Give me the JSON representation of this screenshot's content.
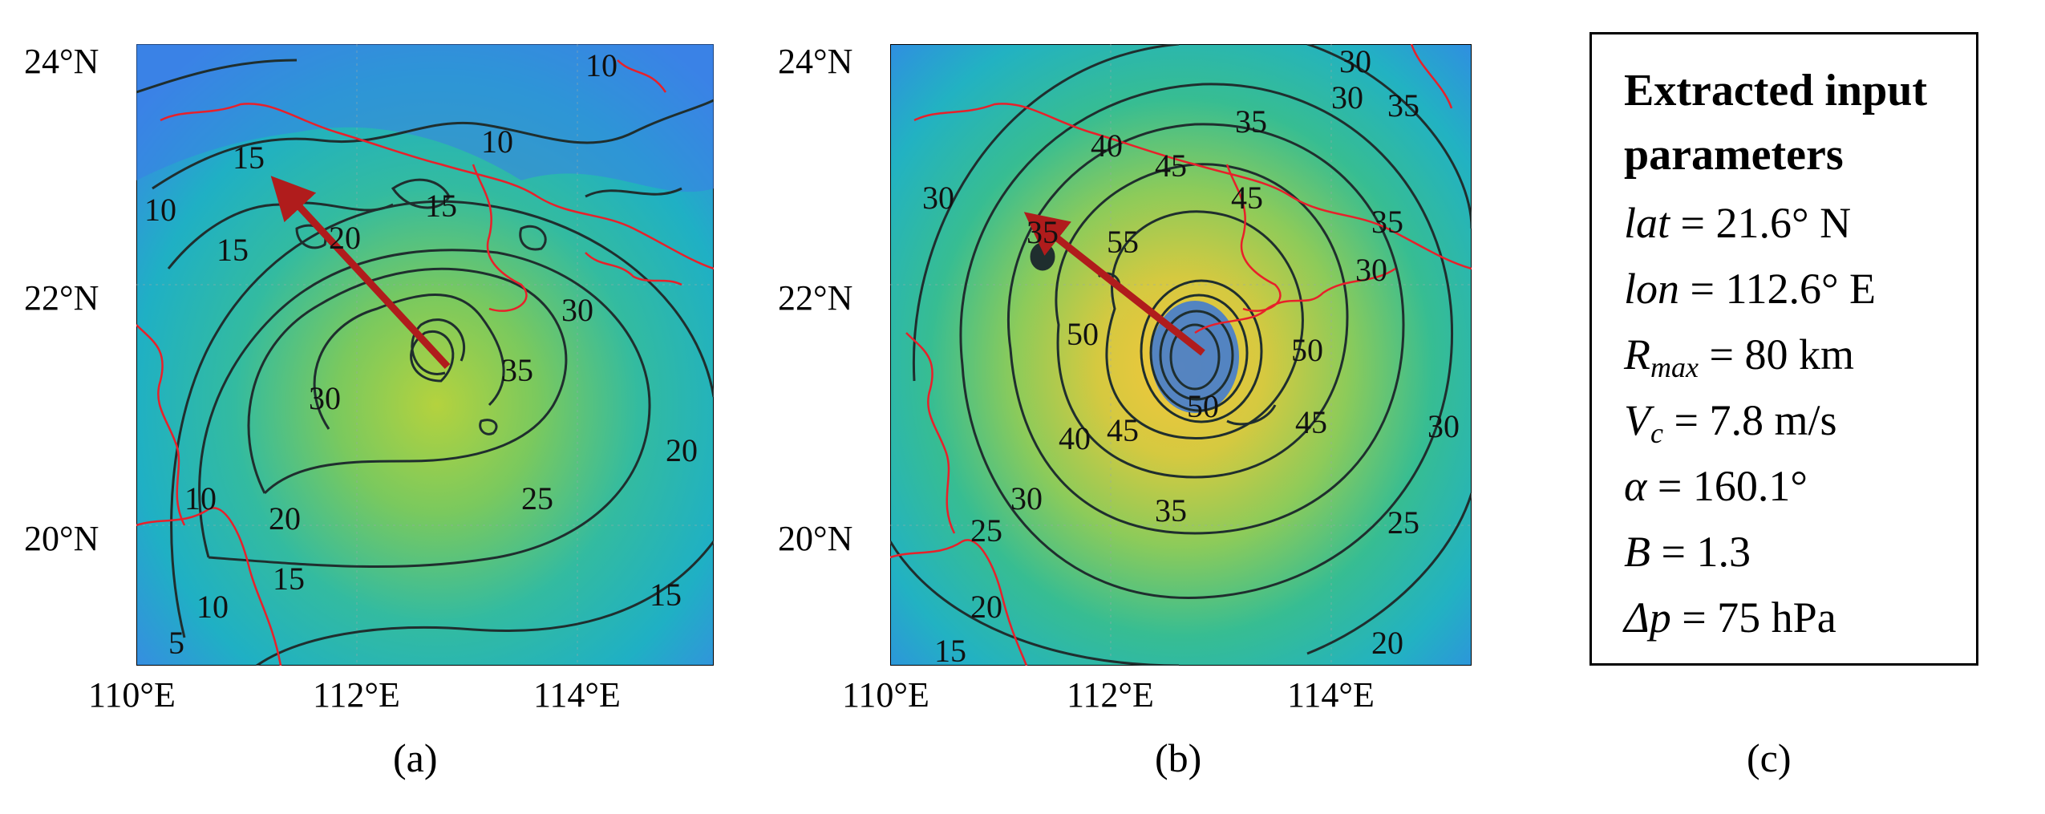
{
  "panel_a": {
    "y_ticks": [
      "24°N",
      "22°N",
      "20°N"
    ],
    "x_ticks": [
      "110°E",
      "112°E",
      "114°E"
    ],
    "contour_labels": [
      "10",
      "10",
      "10",
      "15",
      "20",
      "15",
      "30",
      "35",
      "30",
      "25",
      "20",
      "20",
      "15",
      "15",
      "10",
      "10",
      "5",
      "15"
    ],
    "caption": "(a)",
    "colors": {
      "low": "#3a86e6",
      "mid": "#27b7a9",
      "high": "#a6cf46",
      "contour": "#1f2e2e",
      "coast": "#e8202a",
      "arrow": "#b01c1c"
    }
  },
  "panel_b": {
    "y_ticks": [
      "24°N",
      "22°N",
      "20°N"
    ],
    "x_ticks": [
      "110°E",
      "112°E",
      "114°E"
    ],
    "contour_labels": [
      "30",
      "35",
      "35",
      "30",
      "35",
      "30",
      "40",
      "45",
      "45",
      "55",
      "50",
      "50",
      "30",
      "35",
      "40",
      "45",
      "45",
      "50",
      "30",
      "30",
      "35",
      "25",
      "25",
      "20",
      "20",
      "15"
    ],
    "caption": "(b)",
    "colors": {
      "low": "#2f9be0",
      "mid": "#29bfa2",
      "high": "#f2c43a",
      "contour": "#1f2e2e",
      "coast": "#e8202a",
      "arrow": "#b01c1c"
    }
  },
  "params": {
    "title_line1": "Extracted input",
    "title_line2": "parameters",
    "lat_sym": "lat",
    "lat_val": " = 21.6°  N",
    "lon_sym": "lon",
    "lon_val": " = 112.6°  E",
    "rmax_sym": "R",
    "rmax_sub": "max",
    "rmax_val": " = 80 km",
    "vc_sym": "V",
    "vc_sub": "c",
    "vc_val": " = 7.8 m/s",
    "alpha_sym": "α",
    "alpha_val": " = 160.1°",
    "b_sym": "B",
    "b_val": " = 1.3",
    "dp_sym": "Δp",
    "dp_val": " = 75 hPa",
    "caption": "(c)"
  }
}
